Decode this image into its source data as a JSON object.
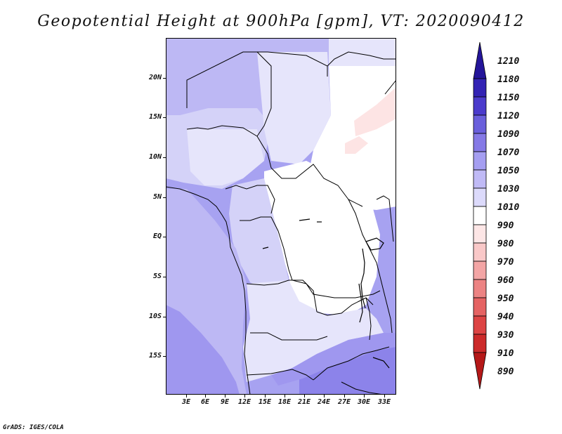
{
  "header": {
    "title": "Geopotential Height at 900hPa [gpm], VT: 2020090412"
  },
  "map": {
    "region": "Central Africa",
    "lat_labels": [
      "20N",
      "15N",
      "10N",
      "5N",
      "EQ",
      "5S",
      "10S",
      "15S"
    ],
    "lon_labels": [
      "3E",
      "6E",
      "9E",
      "12E",
      "15E",
      "18E",
      "21E",
      "24E",
      "27E",
      "30E",
      "33E"
    ],
    "fill_colors": {
      "ocean": "#a7a2f1",
      "west_high": "#bdb8f4",
      "land_mid": "#d4d2f8",
      "land_light": "#e6e5fb",
      "low": "#ffffff",
      "pinkish": "#fde4e4",
      "deep": "#9f97ef",
      "southeast": "#8c83ea"
    }
  },
  "colorbar": {
    "levels": [
      "1210",
      "1180",
      "1150",
      "1120",
      "1090",
      "1070",
      "1050",
      "1030",
      "1010",
      "990",
      "980",
      "970",
      "960",
      "950",
      "940",
      "930",
      "910",
      "890"
    ],
    "colors": [
      "#24159a",
      "#3323b4",
      "#4b3bcc",
      "#6a5fdc",
      "#8579e6",
      "#a59ef1",
      "#c0baf6",
      "#dcdafb",
      "#ffffff",
      "#fde6e6",
      "#f9c8c8",
      "#f3a5a5",
      "#ec8383",
      "#e56363",
      "#dd4444",
      "#cc2a2a",
      "#b51818"
    ]
  },
  "footer": {
    "credit": "GrADS: IGES/COLA"
  }
}
